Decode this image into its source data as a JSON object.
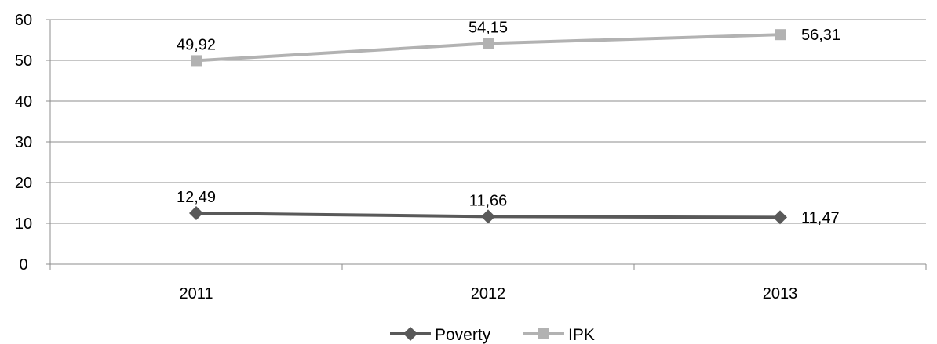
{
  "chart_data": {
    "type": "line",
    "categories": [
      "2011",
      "2012",
      "2013"
    ],
    "series": [
      {
        "name": "Poverty",
        "values": [
          12.49,
          11.66,
          11.47
        ],
        "labels": [
          "12,49",
          "11,66",
          "11,47"
        ],
        "color": "#595959",
        "marker": "diamond"
      },
      {
        "name": "IPK",
        "values": [
          49.92,
          54.15,
          56.31
        ],
        "labels": [
          "49,92",
          "54,15",
          "56,31"
        ],
        "color": "#b2b2b2",
        "marker": "square"
      }
    ],
    "yticks": [
      "0",
      "10",
      "20",
      "30",
      "40",
      "50",
      "60"
    ],
    "ylim": [
      0,
      60
    ],
    "grid": true,
    "legend": "bottom",
    "title": "",
    "xlabel": "",
    "ylabel": ""
  }
}
